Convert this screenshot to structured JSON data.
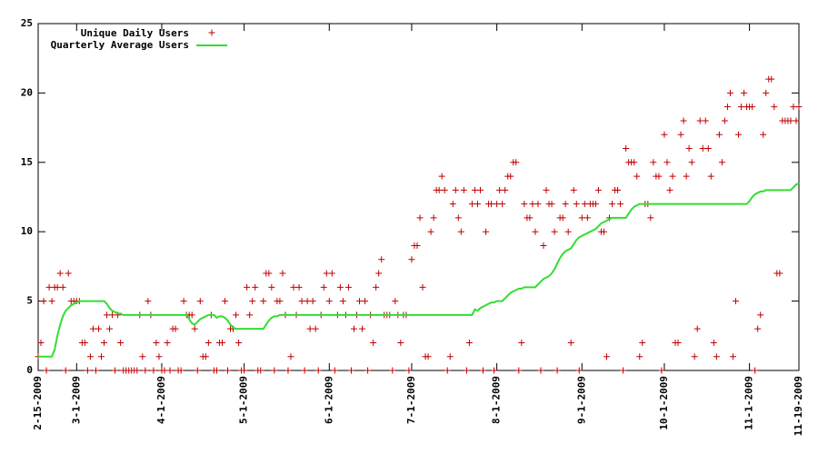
{
  "chart_data": {
    "type": "scatter",
    "categories": [
      "2-15-2009",
      null,
      null,
      null,
      null,
      null,
      null,
      null,
      null,
      null,
      null,
      null,
      null,
      null,
      "3-1-2009",
      null,
      null,
      null,
      null,
      null,
      null,
      null,
      null,
      null,
      null,
      null,
      null,
      null,
      null,
      null,
      null,
      null,
      null,
      null,
      null,
      null,
      null,
      null,
      null,
      null,
      null,
      null,
      null,
      null,
      null,
      "4-1-2009",
      null,
      null,
      null,
      null,
      null,
      null,
      null,
      null,
      null,
      null,
      null,
      null,
      null,
      null,
      null,
      null,
      null,
      null,
      null,
      null,
      null,
      null,
      null,
      null,
      null,
      null,
      null,
      null,
      null,
      "5-1-2009",
      null,
      null,
      null,
      null,
      null,
      null,
      null,
      null,
      null,
      null,
      null,
      null,
      null,
      null,
      null,
      null,
      null,
      null,
      null,
      null,
      null,
      null,
      null,
      null,
      null,
      null,
      null,
      null,
      null,
      null,
      "6-1-2009",
      null,
      null,
      null,
      null,
      null,
      null,
      null,
      null,
      null,
      null,
      null,
      null,
      null,
      null,
      null,
      null,
      null,
      null,
      null,
      null,
      null,
      null,
      null,
      null,
      null,
      null,
      null,
      null,
      null,
      "7-1-2009",
      null,
      null,
      null,
      null,
      null,
      null,
      null,
      null,
      null,
      null,
      null,
      null,
      null,
      null,
      null,
      null,
      null,
      null,
      null,
      null,
      null,
      null,
      null,
      null,
      null,
      null,
      null,
      null,
      null,
      null,
      "8-1-2009",
      null,
      null,
      null,
      null,
      null,
      null,
      null,
      null,
      null,
      null,
      null,
      null,
      null,
      null,
      null,
      null,
      null,
      null,
      null,
      null,
      null,
      null,
      null,
      null,
      null,
      null,
      null,
      null,
      null,
      null,
      "9-1-2009",
      null,
      null,
      null,
      null,
      null,
      null,
      null,
      null,
      null,
      null,
      null,
      null,
      null,
      null,
      null,
      null,
      null,
      null,
      null,
      null,
      null,
      null,
      null,
      null,
      null,
      null,
      null,
      null,
      null,
      "10-1-2009",
      null,
      null,
      null,
      null,
      null,
      null,
      null,
      null,
      null,
      null,
      null,
      null,
      null,
      null,
      null,
      null,
      null,
      null,
      null,
      null,
      null,
      null,
      null,
      null,
      null,
      null,
      null,
      null,
      null,
      null,
      "11-1-2009",
      null,
      null,
      null,
      null,
      null,
      null,
      null,
      null,
      null,
      null,
      null,
      null,
      null,
      null,
      null,
      null,
      null,
      "11-19-2009"
    ],
    "series": [
      {
        "name": "Unique Daily Users",
        "type": "scatter",
        "color": "#c00000",
        "values": [
          1,
          2,
          5,
          0,
          6,
          5,
          6,
          6,
          7,
          6,
          0,
          7,
          5,
          5,
          5,
          5,
          2,
          2,
          0,
          1,
          3,
          0,
          3,
          1,
          2,
          4,
          3,
          4,
          0,
          4,
          2,
          0,
          0,
          0,
          0,
          0,
          0,
          4,
          1,
          0,
          5,
          4,
          0,
          2,
          1,
          0,
          0,
          2,
          0,
          3,
          3,
          0,
          0,
          5,
          4,
          4,
          4,
          3,
          0,
          5,
          1,
          1,
          2,
          4,
          0,
          0,
          2,
          2,
          5,
          0,
          3,
          3,
          4,
          2,
          0,
          0,
          6,
          4,
          5,
          6,
          0,
          0,
          5,
          7,
          7,
          6,
          0,
          5,
          5,
          7,
          4,
          0,
          1,
          6,
          4,
          6,
          5,
          0,
          5,
          3,
          5,
          3,
          0,
          4,
          6,
          7,
          5,
          7,
          0,
          4,
          6,
          5,
          4,
          6,
          0,
          3,
          4,
          5,
          3,
          5,
          0,
          4,
          2,
          6,
          7,
          8,
          4,
          4,
          4,
          0,
          5,
          4,
          2,
          4,
          4,
          0,
          8,
          9,
          9,
          11,
          6,
          1,
          1,
          10,
          11,
          13,
          13,
          14,
          13,
          0,
          1,
          12,
          13,
          11,
          10,
          13,
          0,
          2,
          12,
          13,
          12,
          13,
          0,
          10,
          12,
          12,
          0,
          12,
          13,
          12,
          13,
          14,
          14,
          15,
          15,
          0,
          2,
          12,
          11,
          11,
          12,
          10,
          12,
          0,
          9,
          13,
          12,
          12,
          10,
          0,
          11,
          11,
          12,
          10,
          2,
          13,
          12,
          0,
          11,
          12,
          11,
          12,
          12,
          12,
          13,
          10,
          10,
          1,
          11,
          12,
          13,
          13,
          12,
          0,
          16,
          15,
          15,
          15,
          14,
          1,
          2,
          12,
          12,
          11,
          15,
          14,
          14,
          0,
          17,
          15,
          13,
          14,
          2,
          2,
          17,
          18,
          14,
          16,
          15,
          1,
          3,
          18,
          16,
          18,
          16,
          14,
          2,
          1,
          17,
          15,
          18,
          19,
          20,
          1,
          5,
          17,
          19,
          20,
          19,
          19,
          19,
          0,
          3,
          4,
          17,
          20,
          21,
          21,
          19,
          7,
          7,
          18,
          18,
          18,
          18,
          19,
          18,
          19
        ]
      },
      {
        "name": "Quarterly Average Users",
        "type": "line",
        "color": "#33dd33",
        "values": [
          1,
          1,
          1,
          1,
          1,
          1,
          1.5,
          2.5,
          3.3,
          3.9,
          4.3,
          4.5,
          4.7,
          4.8,
          4.9,
          5,
          5,
          5,
          5,
          5,
          5,
          5,
          5,
          5,
          5,
          4.8,
          4.5,
          4.3,
          4.2,
          4.1,
          4.1,
          4,
          4,
          4,
          4,
          4,
          4,
          4,
          4,
          4,
          4,
          4,
          4,
          4,
          4,
          4,
          4,
          4,
          4,
          4,
          4,
          4,
          4,
          4,
          4,
          3.7,
          3.4,
          3.3,
          3.5,
          3.7,
          3.8,
          3.9,
          4,
          4,
          4,
          3.8,
          3.9,
          3.9,
          3.8,
          3.6,
          3.3,
          3.1,
          3,
          3,
          3,
          3,
          3,
          3,
          3,
          3,
          3,
          3,
          3,
          3.3,
          3.6,
          3.8,
          3.9,
          3.9,
          4,
          4,
          4,
          4,
          4,
          4,
          4,
          4,
          4,
          4,
          4,
          4,
          4,
          4,
          4,
          4,
          4,
          4,
          4,
          4,
          4,
          4,
          4,
          4,
          4,
          4,
          4,
          4,
          4,
          4,
          4,
          4,
          4,
          4,
          4,
          4,
          4,
          4,
          4,
          4,
          4,
          4,
          4,
          4,
          4,
          4,
          4,
          4,
          4,
          4,
          4,
          4,
          4,
          4,
          4,
          4,
          4,
          4,
          4,
          4,
          4,
          4,
          4,
          4,
          4,
          4,
          4,
          4,
          4,
          4,
          4,
          4.4,
          4.3,
          4.5,
          4.6,
          4.7,
          4.8,
          4.9,
          4.9,
          5,
          5,
          5,
          5.2,
          5.4,
          5.6,
          5.7,
          5.8,
          5.9,
          5.9,
          6,
          6,
          6,
          6,
          6,
          6.2,
          6.4,
          6.6,
          6.7,
          6.8,
          7,
          7.3,
          7.7,
          8.1,
          8.4,
          8.6,
          8.7,
          8.8,
          9.1,
          9.4,
          9.6,
          9.7,
          9.8,
          9.9,
          10,
          10.1,
          10.2,
          10.4,
          10.6,
          10.7,
          10.8,
          10.9,
          11,
          11,
          11,
          11,
          11,
          11,
          11.3,
          11.6,
          11.8,
          11.9,
          12,
          12,
          12,
          12,
          12,
          12,
          12,
          12,
          12,
          12,
          12,
          12,
          12,
          12,
          12,
          12,
          12,
          12,
          12,
          12,
          12,
          12,
          12,
          12,
          12,
          12,
          12,
          12,
          12,
          12,
          12,
          12,
          12,
          12,
          12,
          12,
          12,
          12,
          12,
          12,
          12.2,
          12.5,
          12.7,
          12.8,
          12.9,
          12.9,
          13,
          13,
          13,
          13,
          13,
          13,
          13,
          13,
          13,
          13,
          13.2,
          13.4,
          13.5
        ]
      }
    ],
    "ylim": [
      0,
      25
    ],
    "yticks": [
      0,
      5,
      10,
      15,
      20,
      25
    ],
    "legend": "top-left"
  }
}
